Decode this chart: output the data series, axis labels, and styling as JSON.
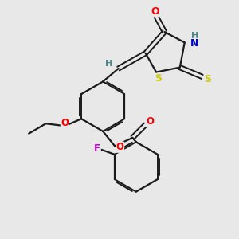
{
  "bg_color": "#e8e8e8",
  "bond_color": "#1a1a1a",
  "atom_colors": {
    "O": "#ff0000",
    "N": "#0000cc",
    "S": "#cccc00",
    "F": "#cc00cc",
    "H": "#4a8a8a"
  },
  "figsize": [
    3.0,
    3.0
  ],
  "dpi": 100
}
